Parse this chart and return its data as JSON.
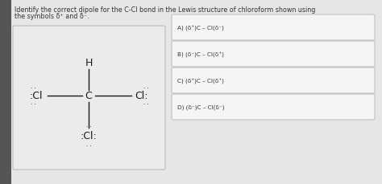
{
  "title_text1": "Identify the correct dipole for the C-Cl bond in the Lewis structure of chloroform shown using",
  "title_text2": "the symbols δ⁺ and δ⁻.",
  "title_fontsize": 5.8,
  "bg_color": "#d8d8d8",
  "content_bg": "#e8e8e8",
  "box_bg": "#f0f0f0",
  "left_bar_color": "#555555",
  "mol_box_color": "#e8e8e8",
  "mol_box_edge": "#aaaaaa",
  "options": [
    "A) (δ⁺)C – Cl(δ⁻)",
    "B) (δ⁻)C – Cl(δ⁺)",
    "C) (δ⁺)C – Cl(δ⁺)",
    "D) (δ⁻)C – Cl(δ⁻)"
  ],
  "option_fontsize": 5.2,
  "molecule_color": "#1a1a1a"
}
